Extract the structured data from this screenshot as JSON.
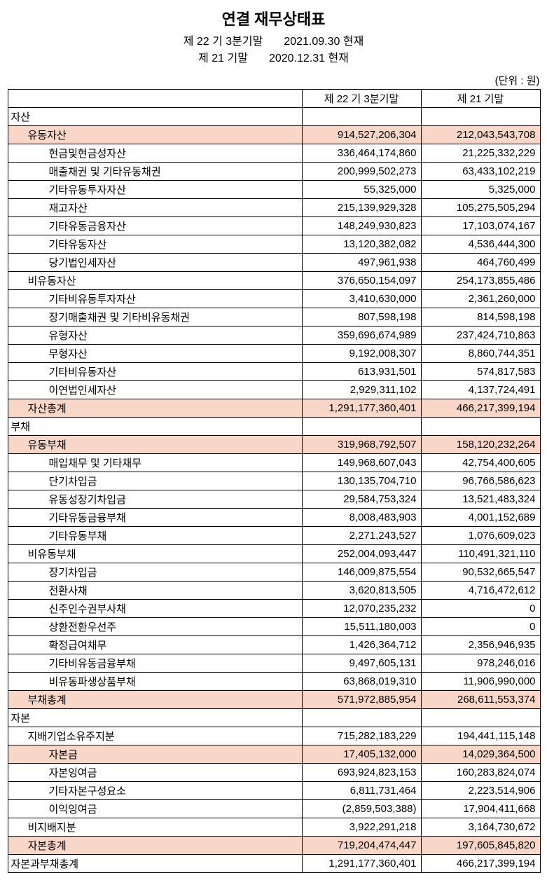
{
  "title": "연결 재무상태표",
  "subtitle_lines": [
    {
      "left": "제 22 기 3분기말",
      "right": "2021.09.30 현재"
    },
    {
      "left": "제 21 기말",
      "right": "2020.12.31 현재"
    }
  ],
  "unit_label": "(단위 : 원)",
  "columns": [
    "제 22 기 3분기말",
    "제 21 기말"
  ],
  "styling": {
    "highlight_bg": "#f8d7c8",
    "border_color": "#000000",
    "font_size_body": 15,
    "font_size_title": 22
  },
  "rows": [
    {
      "label": "자산",
      "indent": 0,
      "hl": false,
      "c1": "",
      "c2": ""
    },
    {
      "label": "유동자산",
      "indent": 1,
      "hl": true,
      "c1": "914,527,206,304",
      "c2": "212,043,543,708"
    },
    {
      "label": "현금및현금성자산",
      "indent": 2,
      "hl": false,
      "c1": "336,464,174,860",
      "c2": "21,225,332,229"
    },
    {
      "label": "매출채권 및 기타유동채권",
      "indent": 2,
      "hl": false,
      "c1": "200,999,502,273",
      "c2": "63,433,102,219"
    },
    {
      "label": "기타유동투자자산",
      "indent": 2,
      "hl": false,
      "c1": "55,325,000",
      "c2": "5,325,000"
    },
    {
      "label": "재고자산",
      "indent": 2,
      "hl": false,
      "c1": "215,139,929,328",
      "c2": "105,275,505,294"
    },
    {
      "label": "기타유동금융자산",
      "indent": 2,
      "hl": false,
      "c1": "148,249,930,823",
      "c2": "17,103,074,167"
    },
    {
      "label": "기타유동자산",
      "indent": 2,
      "hl": false,
      "c1": "13,120,382,082",
      "c2": "4,536,444,300"
    },
    {
      "label": "당기법인세자산",
      "indent": 2,
      "hl": false,
      "c1": "497,961,938",
      "c2": "464,760,499"
    },
    {
      "label": "비유동자산",
      "indent": 1,
      "hl": false,
      "c1": "376,650,154,097",
      "c2": "254,173,855,486"
    },
    {
      "label": "기타비유동투자자산",
      "indent": 2,
      "hl": false,
      "c1": "3,410,630,000",
      "c2": "2,361,260,000"
    },
    {
      "label": "장기매출채권 및 기타비유동채권",
      "indent": 2,
      "hl": false,
      "c1": "807,598,198",
      "c2": "814,598,198"
    },
    {
      "label": "유형자산",
      "indent": 2,
      "hl": false,
      "c1": "359,696,674,989",
      "c2": "237,424,710,863"
    },
    {
      "label": "무형자산",
      "indent": 2,
      "hl": false,
      "c1": "9,192,008,307",
      "c2": "8,860,744,351"
    },
    {
      "label": "기타비유동자산",
      "indent": 2,
      "hl": false,
      "c1": "613,931,501",
      "c2": "574,817,583"
    },
    {
      "label": "이연법인세자산",
      "indent": 2,
      "hl": false,
      "c1": "2,929,311,102",
      "c2": "4,137,724,491"
    },
    {
      "label": "자산총계",
      "indent": 1,
      "hl": true,
      "c1": "1,291,177,360,401",
      "c2": "466,217,399,194"
    },
    {
      "label": "부채",
      "indent": 0,
      "hl": false,
      "c1": "",
      "c2": ""
    },
    {
      "label": "유동부채",
      "indent": 1,
      "hl": true,
      "c1": "319,968,792,507",
      "c2": "158,120,232,264"
    },
    {
      "label": "매입채무 및 기타채무",
      "indent": 2,
      "hl": false,
      "c1": "149,968,607,043",
      "c2": "42,754,400,605"
    },
    {
      "label": "단기차입금",
      "indent": 2,
      "hl": false,
      "c1": "130,135,704,710",
      "c2": "96,766,586,623"
    },
    {
      "label": "유동성장기차입금",
      "indent": 2,
      "hl": false,
      "c1": "29,584,753,324",
      "c2": "13,521,483,324"
    },
    {
      "label": "기타유동금융부채",
      "indent": 2,
      "hl": false,
      "c1": "8,008,483,903",
      "c2": "4,001,152,689"
    },
    {
      "label": "기타유동부채",
      "indent": 2,
      "hl": false,
      "c1": "2,271,243,527",
      "c2": "1,076,609,023"
    },
    {
      "label": "비유동부채",
      "indent": 1,
      "hl": false,
      "c1": "252,004,093,447",
      "c2": "110,491,321,110"
    },
    {
      "label": "장기차입금",
      "indent": 2,
      "hl": false,
      "c1": "146,009,875,554",
      "c2": "90,532,665,547"
    },
    {
      "label": "전환사채",
      "indent": 2,
      "hl": false,
      "c1": "3,620,813,505",
      "c2": "4,716,472,612"
    },
    {
      "label": "신주인수권부사채",
      "indent": 2,
      "hl": false,
      "c1": "12,070,235,232",
      "c2": "0"
    },
    {
      "label": "상환전환우선주",
      "indent": 2,
      "hl": false,
      "c1": "15,511,180,003",
      "c2": "0"
    },
    {
      "label": "확정급여채무",
      "indent": 2,
      "hl": false,
      "c1": "1,426,364,712",
      "c2": "2,356,946,935"
    },
    {
      "label": "기타비유동금융부채",
      "indent": 2,
      "hl": false,
      "c1": "9,497,605,131",
      "c2": "978,246,016"
    },
    {
      "label": "비유동파생상품부채",
      "indent": 2,
      "hl": false,
      "c1": "63,868,019,310",
      "c2": "11,906,990,000"
    },
    {
      "label": "부채총계",
      "indent": 1,
      "hl": true,
      "c1": "571,972,885,954",
      "c2": "268,611,553,374"
    },
    {
      "label": "자본",
      "indent": 0,
      "hl": false,
      "c1": "",
      "c2": ""
    },
    {
      "label": "지배기업소유주지분",
      "indent": 1,
      "hl": false,
      "c1": "715,282,183,229",
      "c2": "194,441,115,148"
    },
    {
      "label": "자본금",
      "indent": 2,
      "hl": true,
      "c1": "17,405,132,000",
      "c2": "14,029,364,500"
    },
    {
      "label": "자본잉여금",
      "indent": 2,
      "hl": false,
      "c1": "693,924,823,153",
      "c2": "160,283,824,074"
    },
    {
      "label": "기타자본구성요소",
      "indent": 2,
      "hl": false,
      "c1": "6,811,731,464",
      "c2": "2,223,514,906"
    },
    {
      "label": "이익잉여금",
      "indent": 2,
      "hl": false,
      "c1": "(2,859,503,388)",
      "c2": "17,904,411,668"
    },
    {
      "label": "비지배지분",
      "indent": 1,
      "hl": false,
      "c1": "3,922,291,218",
      "c2": "3,164,730,672"
    },
    {
      "label": "자본총계",
      "indent": 1,
      "hl": true,
      "c1": "719,204,474,447",
      "c2": "197,605,845,820"
    },
    {
      "label": "자본과부채총계",
      "indent": 0,
      "hl": false,
      "c1": "1,291,177,360,401",
      "c2": "466,217,399,194"
    }
  ]
}
